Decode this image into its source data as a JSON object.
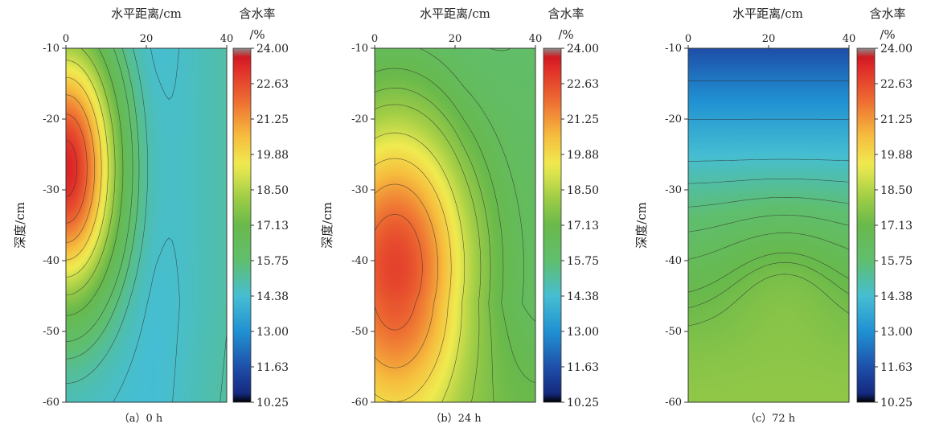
{
  "chart_data": [
    {
      "type": "heatmap",
      "panel": "a",
      "caption": "（a）0 h",
      "xlabel": "水平距离/cm",
      "ylabel": "深度/cm",
      "colorbar_title": [
        "含水率",
        "/%"
      ],
      "xlim": [
        0,
        40
      ],
      "ylim": [
        -60,
        -10
      ],
      "x_ticks": [
        "0",
        "20",
        "40"
      ],
      "y_ticks": [
        "-10",
        "-20",
        "-30",
        "-40",
        "-50",
        "-60"
      ],
      "colorbar_ticks": [
        "24.00",
        "22.63",
        "21.25",
        "19.88",
        "18.50",
        "17.13",
        "15.75",
        "14.38",
        "13.00",
        "11.63",
        "10.25"
      ],
      "vmin": 10.25,
      "vmax": 24.0,
      "field": {
        "form": "core_hotspot",
        "peak_x": 0,
        "peak_y": -27,
        "peak": 23.4,
        "edge": 14.2,
        "spread_x": 13,
        "spread_y": 19,
        "right_x": 40,
        "right_value": 16.4,
        "bottom_y": -60,
        "bottom_value": 14.6
      },
      "contour_levels": [
        14.5,
        15.0,
        15.5,
        16.0,
        17.0,
        18.0,
        19.0,
        20.0,
        21.0,
        22.0,
        23.0
      ]
    },
    {
      "type": "heatmap",
      "panel": "b",
      "caption": "（b）24 h",
      "xlabel": "水平距离/cm",
      "ylabel": "深度/cm",
      "colorbar_title": [
        "含水率",
        "/%"
      ],
      "xlim": [
        0,
        40
      ],
      "ylim": [
        -60,
        -10
      ],
      "x_ticks": [
        "0",
        "20",
        "40"
      ],
      "y_ticks": [
        "-10",
        "-20",
        "-30",
        "-40",
        "-50",
        "-60"
      ],
      "colorbar_ticks": [
        "24.00",
        "22.63",
        "21.25",
        "19.88",
        "18.50",
        "17.13",
        "15.75",
        "14.38",
        "13.00",
        "11.63",
        "10.25"
      ],
      "vmin": 10.25,
      "vmax": 24.0,
      "field": {
        "form": "core_hotspot",
        "peak_x": 5,
        "peak_y": -41,
        "peak": 22.8,
        "edge": 15.6,
        "spread_x": 20,
        "spread_y": 22,
        "right_x": 40,
        "right_value": 16.8,
        "bottom_y": -60,
        "bottom_value": 19.5
      },
      "contour_levels": [
        16.0,
        16.5,
        17.0,
        17.5,
        18.0,
        19.0,
        20.0,
        21.0,
        22.0
      ]
    },
    {
      "type": "heatmap",
      "panel": "c",
      "caption": "（c）72 h",
      "xlabel": "水平距离/cm",
      "ylabel": "深度/cm",
      "colorbar_title": [
        "含水率",
        "/%"
      ],
      "xlim": [
        0,
        40
      ],
      "ylim": [
        -60,
        -10
      ],
      "x_ticks": [
        "0",
        "20",
        "40"
      ],
      "y_ticks": [
        "-10",
        "-20",
        "-30",
        "-40",
        "-50",
        "-60"
      ],
      "colorbar_ticks": [
        "24.00",
        "22.63",
        "21.25",
        "19.88",
        "18.50",
        "17.13",
        "15.75",
        "14.38",
        "13.00",
        "11.63",
        "10.25"
      ],
      "vmin": 10.25,
      "vmax": 24.0,
      "field": {
        "form": "rising_front",
        "top_y": -10,
        "top_value": 11.6,
        "bottom_y": -60,
        "bottom_value": 17.9,
        "bulge_x": 24,
        "bulge_y": -40,
        "bulge": 1.2
      },
      "contour_levels": [
        12.5,
        13.5,
        14.5,
        15.0,
        15.5,
        16.0,
        16.5,
        17.0,
        17.2,
        17.4
      ]
    }
  ]
}
